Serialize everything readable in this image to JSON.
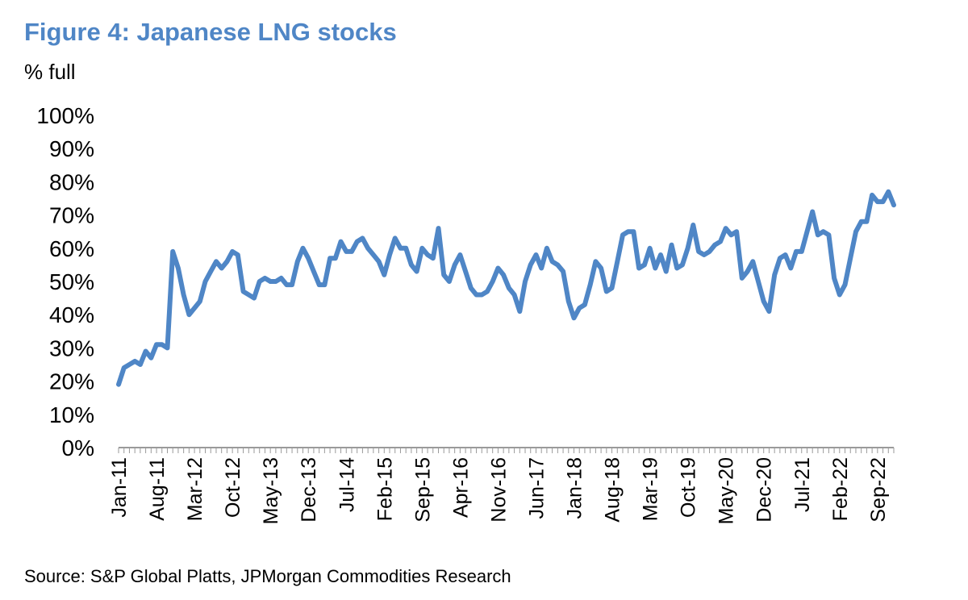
{
  "title": "Figure 4: Japanese LNG stocks",
  "unit_label": "% full",
  "source": "Source: S&P Global Platts, JPMorgan Commodities Research",
  "chart_data": {
    "type": "line",
    "series_color": "#4f86c6",
    "ylim": [
      0,
      100
    ],
    "y_ticks": [
      "0%",
      "10%",
      "20%",
      "30%",
      "40%",
      "50%",
      "60%",
      "70%",
      "80%",
      "90%",
      "100%"
    ],
    "x_tick_labels": [
      "Jan-11",
      "Aug-11",
      "Mar-12",
      "Oct-12",
      "May-13",
      "Dec-13",
      "Jul-14",
      "Feb-15",
      "Sep-15",
      "Apr-16",
      "Nov-16",
      "Jun-17",
      "Jan-18",
      "Aug-18",
      "Mar-19",
      "Oct-19",
      "May-20",
      "Dec-20",
      "Jul-21",
      "Feb-22",
      "Sep-22"
    ],
    "grid": false,
    "legend": "none",
    "start_month": "Jan-11",
    "values": [
      19,
      24,
      25,
      26,
      25,
      29,
      27,
      31,
      31,
      30,
      59,
      54,
      46,
      40,
      42,
      44,
      50,
      53,
      56,
      54,
      56,
      59,
      58,
      47,
      46,
      45,
      50,
      51,
      50,
      50,
      51,
      49,
      49,
      56,
      60,
      57,
      53,
      49,
      49,
      57,
      57,
      62,
      59,
      59,
      62,
      63,
      60,
      58,
      56,
      52,
      58,
      63,
      60,
      60,
      55,
      53,
      60,
      58,
      57,
      66,
      52,
      50,
      55,
      58,
      53,
      48,
      46,
      46,
      47,
      50,
      54,
      52,
      48,
      46,
      41,
      50,
      55,
      58,
      54,
      60,
      56,
      55,
      53,
      44,
      39,
      42,
      43,
      49,
      56,
      54,
      47,
      48,
      56,
      64,
      65,
      65,
      54,
      55,
      60,
      54,
      58,
      53,
      61,
      54,
      55,
      60,
      67,
      59,
      58,
      59,
      61,
      62,
      66,
      64,
      65,
      51,
      53,
      56,
      50,
      44,
      41,
      52,
      57,
      58,
      54,
      59,
      59,
      65,
      71,
      64,
      65,
      64,
      51,
      46,
      49,
      57,
      65,
      68,
      68,
      76,
      74,
      74,
      77,
      73
    ]
  }
}
